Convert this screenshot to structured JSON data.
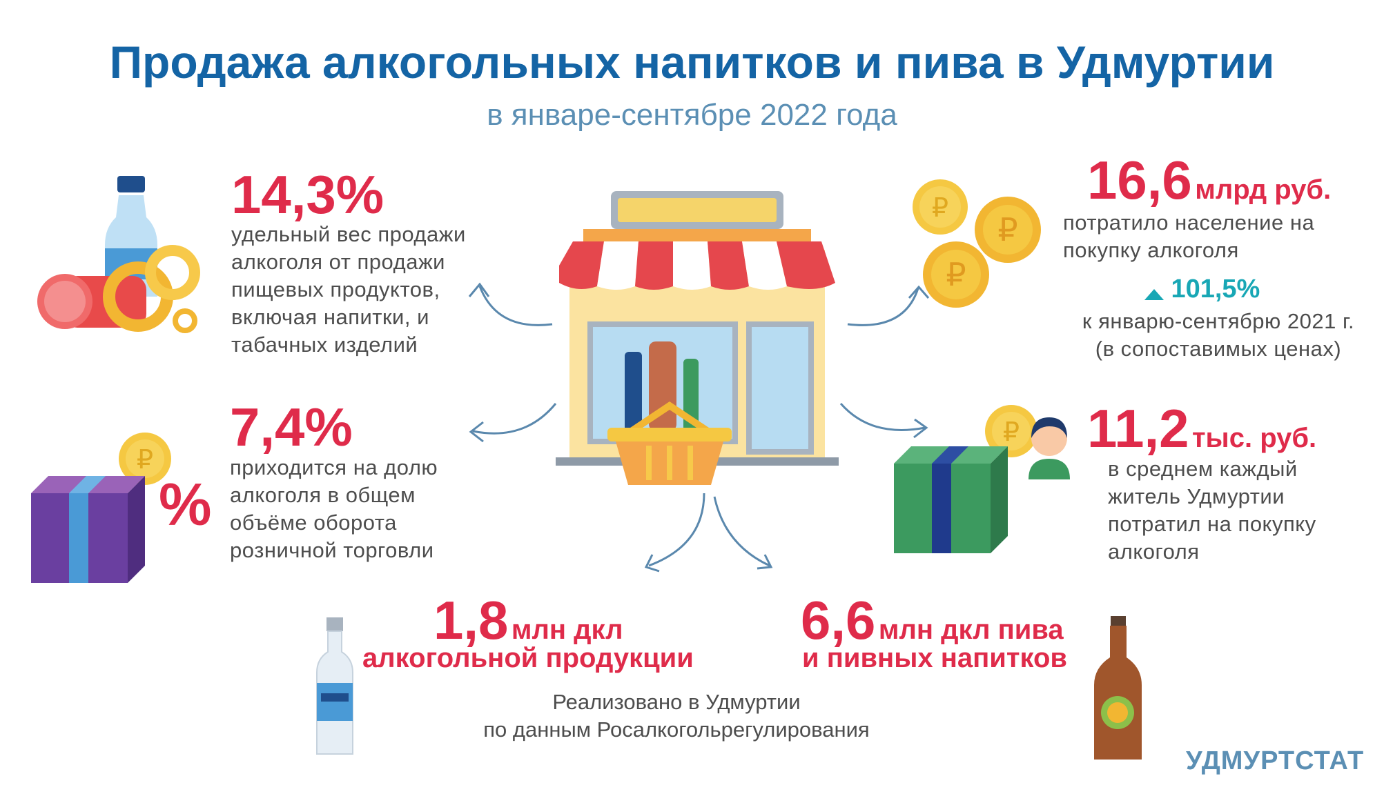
{
  "header": {
    "title": "Продажа алкогольных напитков и пива в Удмуртии",
    "subtitle": "в январе-сентябре 2022 года"
  },
  "stats": {
    "food_share": {
      "value": "14,3%",
      "description": "удельный вес продажи\nалкоголя от продажи\nпищевых продуктов,\nвключая напитки, и\nтабачных изделий"
    },
    "retail_share": {
      "value": "7,4%",
      "description": "приходится на долю\nалкоголя в общем\nобъёме оборота\nрозничной торговли"
    },
    "spent_total": {
      "value": "16,6",
      "unit": "млрд руб.",
      "description": "потратило население на\nпокупку алкоголя",
      "growth": "101,5%",
      "growth_note": "к январю-сентябрю 2021 г.\n(в сопоставимых ценах)"
    },
    "per_capita": {
      "value": "11,2",
      "unit": "тыс. руб.",
      "description": "в среднем каждый\nжитель Удмуртии\nпотратил на покупку\nалкоголя"
    },
    "alcohol_volume": {
      "value": "1,8",
      "unit": "млн дкл",
      "line2": "алкогольной продукции"
    },
    "beer_volume": {
      "value": "6,6",
      "unit": "млн дкл пива",
      "line2": "и пивных напитков"
    }
  },
  "footer": {
    "note": "Реализовано в Удмуртии\nпо данным Росалкогольрегулирования",
    "brand": "УДМУРТСТАТ"
  },
  "icons": [
    "water-bottle-icon",
    "sausage-icon",
    "bagels-icon",
    "gift-box-icon",
    "coin-icon",
    "percent-icon",
    "shop-icon",
    "shopping-basket-icon",
    "coins-stack-icon",
    "person-icon",
    "vodka-bottle-icon",
    "beer-bottle-icon",
    "arrow-icon"
  ],
  "colors": {
    "title": "#1464a5",
    "accent": "#df2b4a",
    "subtitle": "#5b8fb4",
    "growth": "#18a7b5"
  }
}
